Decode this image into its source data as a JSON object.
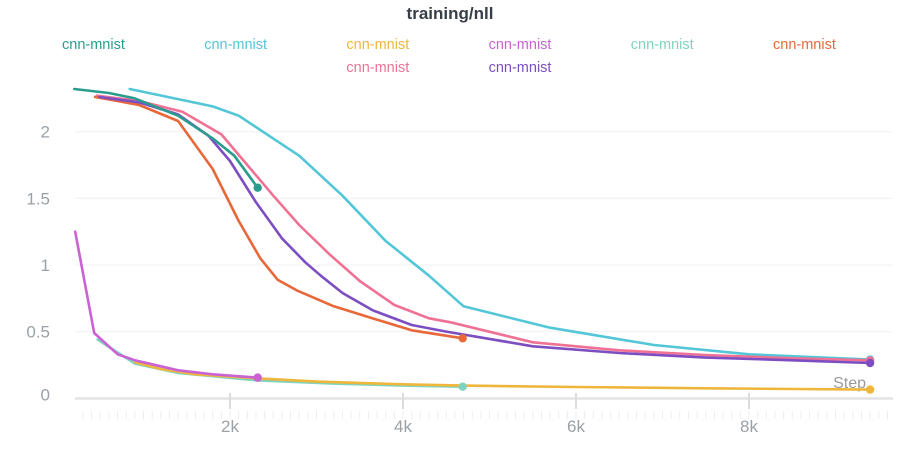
{
  "title": "training/nll",
  "legend": {
    "items": [
      {
        "id": "teal",
        "label": "cnn-mnist",
        "color": "#2a9c8e",
        "row": 0,
        "col": 0
      },
      {
        "id": "cyan",
        "label": "cnn-mnist",
        "color": "#53c6d8",
        "row": 0,
        "col": 1
      },
      {
        "id": "amber",
        "label": "cnn-mnist",
        "color": "#efb63c",
        "row": 0,
        "col": 2
      },
      {
        "id": "orchid",
        "label": "cnn-mnist",
        "color": "#ca62d4",
        "row": 0,
        "col": 3
      },
      {
        "id": "seafoam",
        "label": "cnn-mnist",
        "color": "#7ed4bf",
        "row": 0,
        "col": 4
      },
      {
        "id": "orange",
        "label": "cnn-mnist",
        "color": "#e8683a",
        "row": 0,
        "col": 5
      },
      {
        "id": "pink",
        "label": "cnn-mnist",
        "color": "#ef7295",
        "row": 1,
        "col": 2
      },
      {
        "id": "purple",
        "label": "cnn-mnist",
        "color": "#7d4ec1",
        "row": 1,
        "col": 3
      }
    ]
  },
  "axis": {
    "x_unit_label": "Step",
    "yticks": [
      {
        "value": 0,
        "label": "0"
      },
      {
        "value": 0.5,
        "label": "0.5"
      },
      {
        "value": 1,
        "label": "1"
      },
      {
        "value": 1.5,
        "label": "1.5"
      },
      {
        "value": 2,
        "label": "2"
      }
    ],
    "xticks": [
      {
        "step": 2000,
        "label": "2k"
      },
      {
        "step": 4000,
        "label": "4k"
      },
      {
        "step": 6000,
        "label": "6k"
      },
      {
        "step": 8000,
        "label": "8k"
      }
    ]
  },
  "chart_data": {
    "type": "line",
    "title": "training/nll",
    "xlabel": "Step",
    "ylabel": "",
    "xlim": [
      208,
      9660
    ],
    "ylim": [
      0,
      2.35
    ],
    "grid": "horizontal",
    "legend_position": "top",
    "draw_order": [
      "cyan",
      "pink",
      "orange",
      "purple",
      "teal",
      "seafoam",
      "amber",
      "orchid"
    ],
    "series": [
      {
        "id": "teal",
        "name": "cnn-mnist",
        "color": "#2a9c8e",
        "end_dot": true,
        "points": [
          [
            200,
            2.32
          ],
          [
            600,
            2.29
          ],
          [
            900,
            2.25
          ],
          [
            1400,
            2.12
          ],
          [
            1800,
            1.95
          ],
          [
            2050,
            1.82
          ],
          [
            2320,
            1.58
          ]
        ]
      },
      {
        "id": "cyan",
        "name": "cnn-mnist",
        "color": "#53c6d8",
        "end_dot": true,
        "points": [
          [
            840,
            2.32
          ],
          [
            1800,
            2.19
          ],
          [
            2100,
            2.12
          ],
          [
            2800,
            1.82
          ],
          [
            3300,
            1.52
          ],
          [
            3800,
            1.18
          ],
          [
            4300,
            0.92
          ],
          [
            4700,
            0.69
          ],
          [
            5700,
            0.53
          ],
          [
            6900,
            0.4
          ],
          [
            8000,
            0.33
          ],
          [
            9400,
            0.29
          ]
        ]
      },
      {
        "id": "amber",
        "name": "cnn-mnist",
        "color": "#efb63c",
        "end_dot": true,
        "points": [
          [
            900,
            0.27
          ],
          [
            1200,
            0.22
          ],
          [
            1600,
            0.18
          ],
          [
            2300,
            0.15
          ],
          [
            3000,
            0.125
          ],
          [
            4000,
            0.105
          ],
          [
            4700,
            0.095
          ],
          [
            6000,
            0.085
          ],
          [
            7500,
            0.075
          ],
          [
            9400,
            0.065
          ]
        ]
      },
      {
        "id": "orchid",
        "name": "cnn-mnist",
        "color": "#ca62d4",
        "end_dot": true,
        "points": [
          [
            210,
            1.25
          ],
          [
            430,
            0.49
          ],
          [
            700,
            0.33
          ],
          [
            900,
            0.285
          ],
          [
            1400,
            0.21
          ],
          [
            1800,
            0.18
          ],
          [
            2320,
            0.155
          ]
        ]
      },
      {
        "id": "seafoam",
        "name": "cnn-mnist",
        "color": "#7ed4bf",
        "end_dot": true,
        "points": [
          [
            470,
            0.44
          ],
          [
            900,
            0.26
          ],
          [
            1400,
            0.19
          ],
          [
            2300,
            0.135
          ],
          [
            3200,
            0.11
          ],
          [
            4000,
            0.095
          ],
          [
            4690,
            0.087
          ]
        ]
      },
      {
        "id": "orange",
        "name": "cnn-mnist",
        "color": "#e8683a",
        "end_dot": true,
        "points": [
          [
            440,
            2.26
          ],
          [
            950,
            2.2
          ],
          [
            1400,
            2.08
          ],
          [
            1800,
            1.72
          ],
          [
            2100,
            1.33
          ],
          [
            2350,
            1.05
          ],
          [
            2550,
            0.89
          ],
          [
            2770,
            0.81
          ],
          [
            3200,
            0.69
          ],
          [
            3700,
            0.59
          ],
          [
            4100,
            0.51
          ],
          [
            4690,
            0.45
          ]
        ]
      },
      {
        "id": "pink",
        "name": "cnn-mnist",
        "color": "#ef7295",
        "end_dot": true,
        "points": [
          [
            460,
            2.27
          ],
          [
            950,
            2.23
          ],
          [
            1450,
            2.15
          ],
          [
            1900,
            1.98
          ],
          [
            2200,
            1.75
          ],
          [
            2500,
            1.52
          ],
          [
            2800,
            1.3
          ],
          [
            3150,
            1.08
          ],
          [
            3500,
            0.88
          ],
          [
            3900,
            0.7
          ],
          [
            4300,
            0.6
          ],
          [
            4550,
            0.57
          ],
          [
            5500,
            0.42
          ],
          [
            6500,
            0.36
          ],
          [
            7500,
            0.325
          ],
          [
            8500,
            0.3
          ],
          [
            9400,
            0.285
          ]
        ]
      },
      {
        "id": "purple",
        "name": "cnn-mnist",
        "color": "#7d4ec1",
        "end_dot": true,
        "points": [
          [
            490,
            2.26
          ],
          [
            950,
            2.22
          ],
          [
            1400,
            2.13
          ],
          [
            1750,
            1.97
          ],
          [
            2000,
            1.78
          ],
          [
            2300,
            1.47
          ],
          [
            2600,
            1.2
          ],
          [
            2870,
            1.02
          ],
          [
            3050,
            0.92
          ],
          [
            3300,
            0.79
          ],
          [
            3650,
            0.66
          ],
          [
            4100,
            0.55
          ],
          [
            4500,
            0.5
          ],
          [
            5500,
            0.39
          ],
          [
            6500,
            0.34
          ],
          [
            7500,
            0.305
          ],
          [
            8500,
            0.285
          ],
          [
            9400,
            0.265
          ]
        ]
      }
    ]
  },
  "style_colors": {
    "title_text": "#373e47",
    "tick_text": "#9ba1a6",
    "step_label_text": "#9a9a9a",
    "gridline": "#f4f4f4",
    "axis_line": "#e1e3e5",
    "major_tick": "#dcdcdc",
    "minor_tick": "#ededed"
  }
}
